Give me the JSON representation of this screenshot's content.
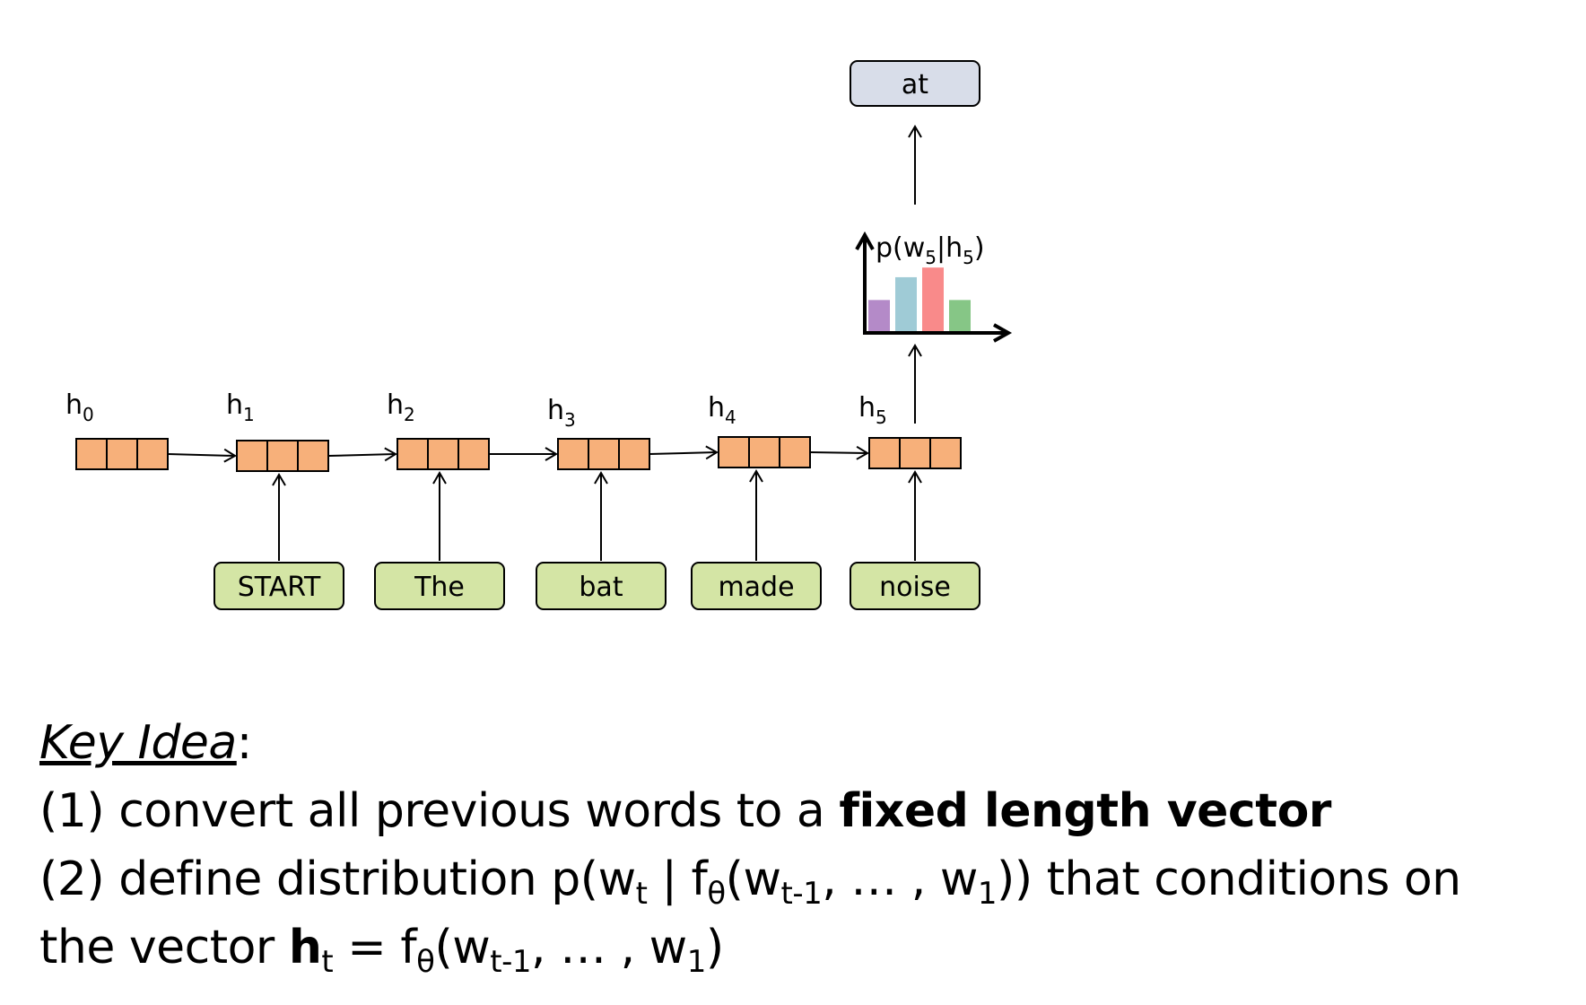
{
  "diagram": {
    "output_word": "at",
    "input_words": [
      "START",
      "The",
      "bat",
      "made",
      "noise"
    ],
    "hidden_states": [
      {
        "base": "h",
        "sub": "0"
      },
      {
        "base": "h",
        "sub": "1"
      },
      {
        "base": "h",
        "sub": "2"
      },
      {
        "base": "h",
        "sub": "3"
      },
      {
        "base": "h",
        "sub": "4"
      },
      {
        "base": "h",
        "sub": "5"
      }
    ],
    "distribution_label": {
      "prefix": "p(w",
      "sub1": "5",
      "middle": "|h",
      "sub2": "5",
      "suffix": ")"
    },
    "distribution_bars": [
      {
        "value": 0.45,
        "color": "#b48ac8"
      },
      {
        "value": 0.78,
        "color": "#9fcbd6"
      },
      {
        "value": 0.92,
        "color": "#f98a8a"
      },
      {
        "value": 0.45,
        "color": "#86c686"
      }
    ],
    "colors": {
      "hidden_cell": "#f7b07a",
      "word_box": "#d4e5a5",
      "output_box": "#d8dde9"
    }
  },
  "key_idea": {
    "heading": "Key Idea",
    "heading_colon": ":",
    "line1_plain": "(1) convert all previous words to a ",
    "line1_bold": "fixed length vector",
    "line2_a": "(2) define distribution p(w",
    "line2_sub_t": "t",
    "line2_b": " | f",
    "line2_sub_theta": "θ",
    "line2_c": "(w",
    "line2_sub_tm1": "t-1",
    "line2_d": ", … , w",
    "line2_sub_1": "1",
    "line2_e": ")) that conditions on",
    "line3_a": "the vector ",
    "line3_bold_h": "h",
    "line3_sub_t": "t",
    "line3_b": " = f",
    "line3_sub_theta": "θ",
    "line3_c": "(w",
    "line3_sub_tm1": "t-1",
    "line3_d": ", … , w",
    "line3_sub_1": "1",
    "line3_e": ")"
  }
}
